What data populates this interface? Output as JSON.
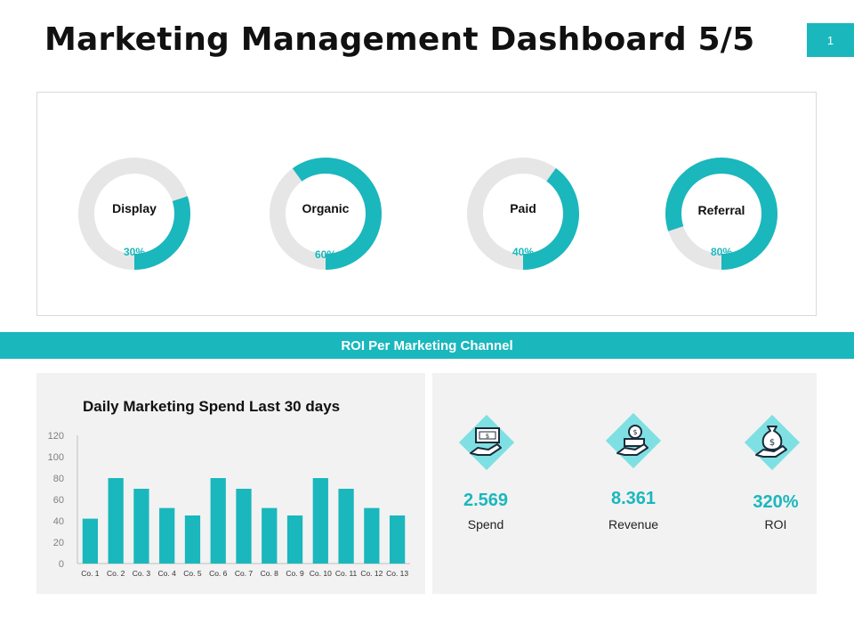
{
  "title": "Marketing Management Dashboard 5/5",
  "page_number": "1",
  "colors": {
    "accent": "#1ab7bd",
    "track": "#e6e6e6",
    "panel": "#f2f2f2"
  },
  "donuts": [
    {
      "label": "Display",
      "percent_text": "30%",
      "value": 0.3
    },
    {
      "label": "Organic",
      "percent_text": "60%",
      "value": 0.6
    },
    {
      "label": "Paid",
      "percent_text": "40%",
      "value": 0.4
    },
    {
      "label": "Referral",
      "percent_text": "80%",
      "value": 0.8
    }
  ],
  "banner": "ROI Per Marketing Channel",
  "chart_data": {
    "type": "bar",
    "title": "Daily Marketing Spend Last 30 days",
    "categories": [
      "Co. 1",
      "Co. 2",
      "Co. 3",
      "Co. 4",
      "Co. 5",
      "Co. 6",
      "Co. 7",
      "Co. 8",
      "Co. 9",
      "Co. 10",
      "Co. 11",
      "Co. 12",
      "Co. 13"
    ],
    "values": [
      42,
      80,
      70,
      52,
      45,
      80,
      70,
      52,
      45,
      80,
      70,
      52,
      45
    ],
    "yticks": [
      "0",
      "20",
      "40",
      "60",
      "80",
      "100",
      "120"
    ],
    "ylim": [
      0,
      120
    ],
    "grid": false,
    "color": "#1ab7bd"
  },
  "kpis": [
    {
      "icon": "money-in-hand-icon",
      "value": "2.569",
      "label": "Spend"
    },
    {
      "icon": "coins-in-hand-icon",
      "value": "8.361",
      "label": "Revenue"
    },
    {
      "icon": "money-bag-in-hand-icon",
      "value": "320%",
      "label": "ROI"
    }
  ]
}
